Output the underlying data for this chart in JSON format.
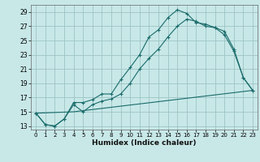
{
  "title": "",
  "xlabel": "Humidex (Indice chaleur)",
  "bg_color": "#c8e8e8",
  "grid_color": "#9dc4c4",
  "line_color": "#1a6b6b",
  "xlim": [
    -0.5,
    23.5
  ],
  "ylim": [
    12.5,
    30.0
  ],
  "xticks": [
    0,
    1,
    2,
    3,
    4,
    5,
    6,
    7,
    8,
    9,
    10,
    11,
    12,
    13,
    14,
    15,
    16,
    17,
    18,
    19,
    20,
    21,
    22,
    23
  ],
  "yticks": [
    13,
    15,
    17,
    19,
    21,
    23,
    25,
    27,
    29
  ],
  "line1_x": [
    0,
    1,
    2,
    3,
    4,
    5,
    6,
    7,
    8,
    9,
    10,
    11,
    12,
    13,
    14,
    15,
    16,
    17,
    18,
    19,
    20,
    21,
    22,
    23
  ],
  "line1_y": [
    14.8,
    13.2,
    13.0,
    14.0,
    16.3,
    16.3,
    16.7,
    17.5,
    17.5,
    19.5,
    21.2,
    23.0,
    25.5,
    26.5,
    28.2,
    29.3,
    28.8,
    27.5,
    27.3,
    26.8,
    26.3,
    23.8,
    19.8,
    18.0
  ],
  "line2_x": [
    0,
    1,
    2,
    3,
    4,
    5,
    6,
    7,
    8,
    9,
    10,
    11,
    12,
    13,
    14,
    15,
    16,
    17,
    18,
    19,
    20,
    21,
    22,
    23
  ],
  "line2_y": [
    14.8,
    13.2,
    13.0,
    14.0,
    16.0,
    15.0,
    16.0,
    16.5,
    16.8,
    17.5,
    19.0,
    21.0,
    22.5,
    23.8,
    25.5,
    27.0,
    28.0,
    27.7,
    27.0,
    26.8,
    25.8,
    23.5,
    19.8,
    18.0
  ],
  "line3_x": [
    0,
    4,
    23
  ],
  "line3_y": [
    14.8,
    15.0,
    18.0
  ]
}
